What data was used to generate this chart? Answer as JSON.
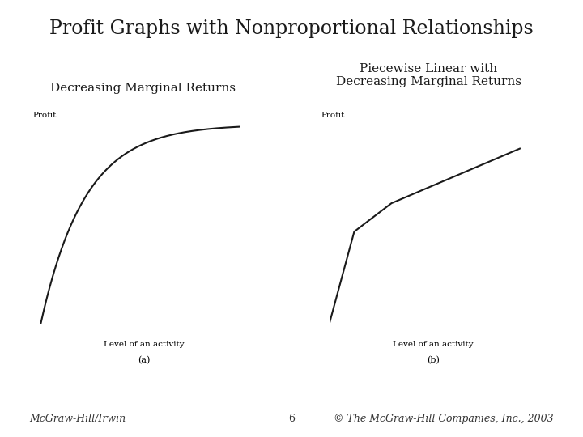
{
  "title": "Profit Graphs with Nonproportional Relationships",
  "title_fontsize": 17,
  "left_label": "Decreasing Marginal Returns",
  "right_label": "Piecewise Linear with\nDecreasing Marginal Returns",
  "label_fontsize": 11,
  "profit_label": "Profit",
  "activity_label": "Level of an activity",
  "sub_a": "(a)",
  "sub_b": "(b)",
  "footer_left": "McGraw-Hill/Irwin",
  "footer_center": "6",
  "footer_right": "© The McGraw-Hill Companies, Inc., 2003",
  "footer_fontsize": 9,
  "bg_color": "#ffffff",
  "line_color": "#1a1a1a",
  "text_color": "#1a1a1a"
}
